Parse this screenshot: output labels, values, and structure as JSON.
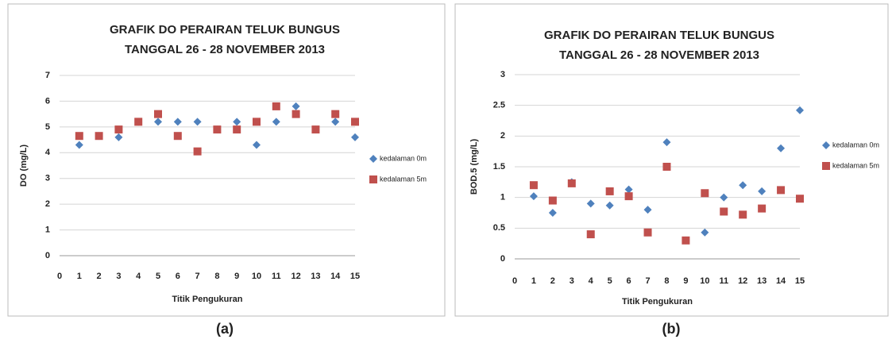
{
  "chart_data": [
    {
      "type": "scatter",
      "title": [
        "GRAFIK DO PERAIRAN TELUK BUNGUS",
        "TANGGAL 26 - 28 NOVEMBER 2013"
      ],
      "x_label": "Titik Pengukuran",
      "y_label": "DO (mg/L)",
      "xlim": [
        0,
        15
      ],
      "xticks": [
        0,
        1,
        2,
        3,
        4,
        5,
        6,
        7,
        8,
        9,
        10,
        11,
        12,
        13,
        14,
        15
      ],
      "ylim": [
        0,
        7
      ],
      "yticks": [
        0,
        1,
        2,
        3,
        4,
        5,
        6,
        7
      ],
      "grid": true,
      "legend": "right",
      "x": [
        1,
        2,
        3,
        4,
        5,
        6,
        7,
        8,
        9,
        10,
        11,
        12,
        13,
        14,
        15
      ],
      "series": [
        {
          "name": "kedalaman 0m",
          "color": "#4f81bd",
          "marker": "diamond",
          "values": [
            4.3,
            4.65,
            4.6,
            5.2,
            5.2,
            5.2,
            5.2,
            4.9,
            5.2,
            4.3,
            5.2,
            5.8,
            4.9,
            5.2,
            4.6
          ]
        },
        {
          "name": "kedalaman 5m",
          "color": "#c0504d",
          "marker": "square",
          "values": [
            4.65,
            4.65,
            4.9,
            5.2,
            5.5,
            4.65,
            4.05,
            4.9,
            4.9,
            5.2,
            5.8,
            5.5,
            4.9,
            5.5,
            5.2
          ]
        }
      ]
    },
    {
      "type": "scatter",
      "title": [
        "GRAFIK DO PERAIRAN TELUK BUNGUS",
        "TANGGAL 26 - 28 NOVEMBER 2013"
      ],
      "x_label": "Titik Pengukuran",
      "y_label": "BOD.5 (mg/L)",
      "xlim": [
        0,
        15
      ],
      "xticks": [
        0,
        1,
        2,
        3,
        4,
        5,
        6,
        7,
        8,
        9,
        10,
        11,
        12,
        13,
        14,
        15
      ],
      "ylim": [
        0,
        3
      ],
      "yticks": [
        0,
        0.5,
        1,
        1.5,
        2,
        2.5,
        3
      ],
      "grid": true,
      "legend": "right",
      "x": [
        1,
        2,
        3,
        4,
        5,
        6,
        7,
        8,
        9,
        10,
        11,
        12,
        13,
        14,
        15
      ],
      "series": [
        {
          "name": "kedalaman 0m",
          "color": "#4f81bd",
          "marker": "diamond",
          "values": [
            1.02,
            0.75,
            1.25,
            0.9,
            0.87,
            1.13,
            0.8,
            1.9,
            0.3,
            0.43,
            1.0,
            1.2,
            1.1,
            1.8,
            2.42
          ]
        },
        {
          "name": "kedalaman 5m",
          "color": "#c0504d",
          "marker": "square",
          "values": [
            1.2,
            0.95,
            1.23,
            0.4,
            1.1,
            1.02,
            0.43,
            1.5,
            0.3,
            1.07,
            0.77,
            0.72,
            0.82,
            1.12,
            0.98
          ]
        }
      ]
    }
  ],
  "captions": [
    "(a)",
    "(b)"
  ]
}
